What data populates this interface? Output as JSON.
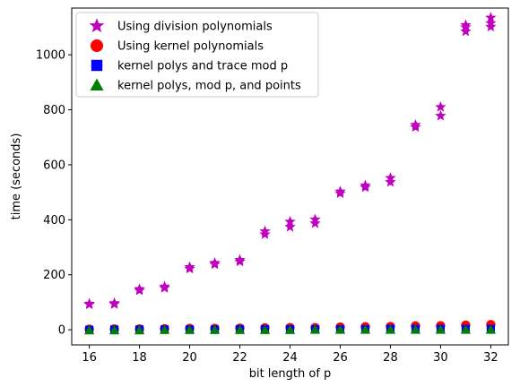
{
  "chart_data": {
    "type": "scatter",
    "title": "",
    "xlabel": "bit length of p",
    "ylabel": "time (seconds)",
    "xlim": [
      15.3,
      32.7
    ],
    "ylim": [
      -55,
      1170
    ],
    "xticks": [
      16,
      18,
      20,
      22,
      24,
      26,
      28,
      30,
      32
    ],
    "yticks": [
      0,
      200,
      400,
      600,
      800,
      1000
    ],
    "grid": false,
    "legend_position": "top-left",
    "series": [
      {
        "name": "Using division polynomials",
        "marker": "star",
        "color": "#bf00bf",
        "points": [
          [
            16,
            92
          ],
          [
            16,
            95
          ],
          [
            17,
            93
          ],
          [
            17,
            97
          ],
          [
            18,
            143
          ],
          [
            18,
            148
          ],
          [
            19,
            152
          ],
          [
            19,
            157
          ],
          [
            20,
            222
          ],
          [
            20,
            228
          ],
          [
            21,
            238
          ],
          [
            21,
            243
          ],
          [
            22,
            248
          ],
          [
            22,
            254
          ],
          [
            23,
            347
          ],
          [
            23,
            358
          ],
          [
            24,
            374
          ],
          [
            24,
            393
          ],
          [
            25,
            387
          ],
          [
            25,
            401
          ],
          [
            26,
            496
          ],
          [
            26,
            503
          ],
          [
            27,
            518
          ],
          [
            27,
            525
          ],
          [
            28,
            537
          ],
          [
            28,
            552
          ],
          [
            29,
            737
          ],
          [
            29,
            745
          ],
          [
            30,
            778
          ],
          [
            30,
            810
          ],
          [
            31,
            1085
          ],
          [
            31,
            1100
          ],
          [
            31,
            1108
          ],
          [
            32,
            1102
          ],
          [
            32,
            1115
          ],
          [
            32,
            1135
          ]
        ]
      },
      {
        "name": "Using kernel polynomials",
        "marker": "circle",
        "color": "#ff0000",
        "points": [
          [
            16,
            2
          ],
          [
            17,
            3
          ],
          [
            18,
            3
          ],
          [
            19,
            4
          ],
          [
            20,
            5
          ],
          [
            21,
            5
          ],
          [
            22,
            6
          ],
          [
            23,
            7
          ],
          [
            24,
            8
          ],
          [
            25,
            8
          ],
          [
            26,
            10
          ],
          [
            27,
            11
          ],
          [
            28,
            12
          ],
          [
            29,
            14
          ],
          [
            30,
            15
          ],
          [
            31,
            17
          ],
          [
            32,
            19
          ]
        ]
      },
      {
        "name": "kernel polys and trace mod p",
        "marker": "square",
        "color": "#0000ff",
        "points": [
          [
            16,
            0
          ],
          [
            17,
            1
          ],
          [
            18,
            1
          ],
          [
            19,
            1
          ],
          [
            20,
            1
          ],
          [
            21,
            1
          ],
          [
            22,
            2
          ],
          [
            23,
            2
          ],
          [
            24,
            2
          ],
          [
            25,
            2
          ],
          [
            26,
            2
          ],
          [
            27,
            2
          ],
          [
            28,
            3
          ],
          [
            29,
            3
          ],
          [
            30,
            3
          ],
          [
            31,
            3
          ],
          [
            32,
            3
          ]
        ]
      },
      {
        "name": "kernel polys, mod p, and points",
        "marker": "triangle",
        "color": "#008000",
        "points": [
          [
            16,
            -2
          ],
          [
            17,
            -2
          ],
          [
            18,
            -2
          ],
          [
            19,
            -1
          ],
          [
            20,
            -1
          ],
          [
            21,
            -1
          ],
          [
            22,
            -1
          ],
          [
            23,
            -1
          ],
          [
            24,
            -1
          ],
          [
            25,
            0
          ],
          [
            26,
            0
          ],
          [
            27,
            0
          ],
          [
            28,
            0
          ],
          [
            29,
            0
          ],
          [
            30,
            0
          ],
          [
            31,
            0
          ],
          [
            32,
            0
          ]
        ]
      }
    ]
  }
}
